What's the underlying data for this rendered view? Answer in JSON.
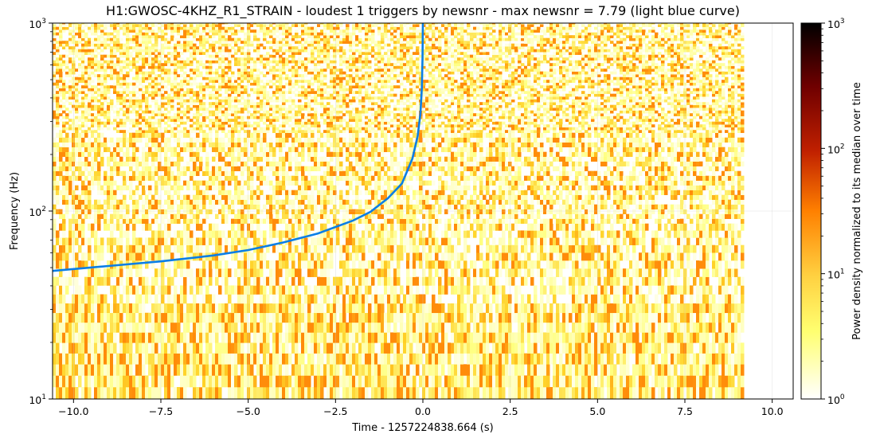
{
  "chart_data": {
    "type": "heatmap",
    "title": "H1:GWOSC-4KHZ_R1_STRAIN - loudest 1 triggers by newsnr - max newsnr = 7.79 (light blue curve)",
    "xlabel": "Time - 1257224838.664 (s)",
    "ylabel": "Frequency (Hz)",
    "colorbar_label": "Power density normalized to its median over time",
    "xlim": [
      -10.6,
      10.6
    ],
    "ylim": [
      10,
      1000
    ],
    "yscale": "log",
    "data_extent_x": [
      -10.6,
      9.1
    ],
    "color_range": [
      1,
      1000
    ],
    "color_scale": "log",
    "colormap": "afmhot_r",
    "grid": true,
    "x_ticks": [
      {
        "value": -10.0,
        "label": "−10.0"
      },
      {
        "value": -7.5,
        "label": "−7.5"
      },
      {
        "value": -5.0,
        "label": "−5.0"
      },
      {
        "value": -2.5,
        "label": "−2.5"
      },
      {
        "value": 0.0,
        "label": "0.0"
      },
      {
        "value": 2.5,
        "label": "2.5"
      },
      {
        "value": 5.0,
        "label": "5.0"
      },
      {
        "value": 7.5,
        "label": "7.5"
      },
      {
        "value": 10.0,
        "label": "10.0"
      }
    ],
    "y_ticks": [
      {
        "value": 10,
        "base": "10",
        "exp": "1"
      },
      {
        "value": 100,
        "base": "10",
        "exp": "2"
      },
      {
        "value": 1000,
        "base": "10",
        "exp": "3"
      }
    ],
    "colorbar_ticks": [
      {
        "value": 1,
        "base": "10",
        "exp": "0"
      },
      {
        "value": 10,
        "base": "10",
        "exp": "1"
      },
      {
        "value": 100,
        "base": "10",
        "exp": "2"
      },
      {
        "value": 1000,
        "base": "10",
        "exp": "3"
      }
    ],
    "trigger_curve": {
      "color": "#0a7ee6",
      "t": [
        -10.6,
        -9,
        -7.5,
        -6,
        -5,
        -4,
        -3,
        -2,
        -1.5,
        -1,
        -0.6,
        -0.3,
        -0.15,
        -0.07,
        -0.03,
        -0.01,
        0.0
      ],
      "f": [
        48,
        51,
        54,
        58,
        62,
        68,
        76,
        89,
        99,
        117,
        140,
        190,
        250,
        330,
        450,
        650,
        1000
      ]
    }
  }
}
